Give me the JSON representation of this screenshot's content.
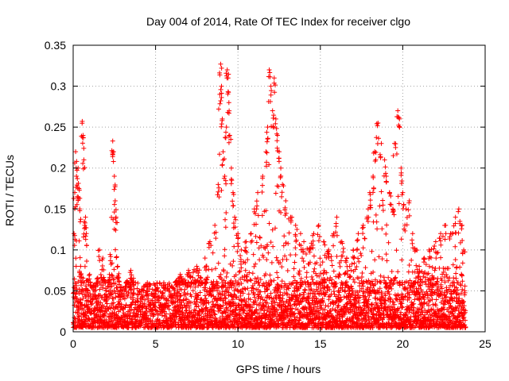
{
  "chart_data": {
    "type": "scatter",
    "title": "Day 004 of 2014, Rate Of TEC Index for receiver clgo",
    "xlabel": "GPS time / hours",
    "ylabel": "ROTI / TECUs",
    "xlim": [
      0,
      25
    ],
    "ylim": [
      0,
      0.35
    ],
    "xticks": [
      0,
      5,
      10,
      15,
      20,
      25
    ],
    "xtick_labels": [
      "0",
      "5",
      "10",
      "15",
      "20",
      "25"
    ],
    "yticks": [
      0,
      0.05,
      0.1,
      0.15,
      0.2,
      0.25,
      0.3,
      0.35
    ],
    "ytick_labels": [
      "0",
      "0.05",
      "0.1",
      "0.15",
      "0.2",
      "0.25",
      "0.3",
      "0.35"
    ],
    "grid": true,
    "marker": "+",
    "series": [
      {
        "name": "ROTI",
        "color": "#ff0000",
        "points": [
          [
            0.05,
            0.12
          ],
          [
            0.1,
            0.17
          ],
          [
            0.15,
            0.22
          ],
          [
            0.2,
            0.19
          ],
          [
            0.25,
            0.165
          ],
          [
            0.3,
            0.2
          ],
          [
            0.35,
            0.175
          ],
          [
            0.4,
            0.15
          ],
          [
            0.45,
            0.08
          ],
          [
            0.5,
            0.06
          ],
          [
            0.55,
            0.257
          ],
          [
            0.6,
            0.24
          ],
          [
            0.65,
            0.21
          ],
          [
            0.7,
            0.13
          ],
          [
            0.75,
            0.14
          ],
          [
            0.8,
            0.12
          ],
          [
            0.9,
            0.05
          ],
          [
            1.0,
            0.07
          ],
          [
            1.2,
            0.04
          ],
          [
            1.4,
            0.06
          ],
          [
            1.6,
            0.1
          ],
          [
            1.8,
            0.09
          ],
          [
            2.0,
            0.05
          ],
          [
            2.2,
            0.07
          ],
          [
            2.4,
            0.233
          ],
          [
            2.45,
            0.22
          ],
          [
            2.5,
            0.19
          ],
          [
            2.55,
            0.16
          ],
          [
            2.6,
            0.14
          ],
          [
            2.7,
            0.08
          ],
          [
            2.9,
            0.05
          ],
          [
            3.2,
            0.06
          ],
          [
            3.5,
            0.075
          ],
          [
            4.0,
            0.05
          ],
          [
            4.5,
            0.06
          ],
          [
            5.0,
            0.05
          ],
          [
            5.5,
            0.06
          ],
          [
            6.0,
            0.055
          ],
          [
            6.5,
            0.07
          ],
          [
            7.0,
            0.075
          ],
          [
            7.5,
            0.08
          ],
          [
            8.0,
            0.09
          ],
          [
            8.3,
            0.11
          ],
          [
            8.6,
            0.13
          ],
          [
            8.8,
            0.18
          ],
          [
            8.9,
            0.29
          ],
          [
            8.95,
            0.327
          ],
          [
            9.0,
            0.3
          ],
          [
            9.05,
            0.26
          ],
          [
            9.1,
            0.22
          ],
          [
            9.2,
            0.19
          ],
          [
            9.3,
            0.25
          ],
          [
            9.35,
            0.32
          ],
          [
            9.4,
            0.31
          ],
          [
            9.45,
            0.28
          ],
          [
            9.5,
            0.24
          ],
          [
            9.6,
            0.2
          ],
          [
            9.7,
            0.17
          ],
          [
            9.8,
            0.14
          ],
          [
            10.0,
            0.12
          ],
          [
            10.2,
            0.1
          ],
          [
            10.5,
            0.11
          ],
          [
            10.8,
            0.12
          ],
          [
            11.0,
            0.15
          ],
          [
            11.2,
            0.17
          ],
          [
            11.5,
            0.19
          ],
          [
            11.7,
            0.22
          ],
          [
            11.8,
            0.25
          ],
          [
            11.9,
            0.32
          ],
          [
            12.0,
            0.3
          ],
          [
            12.1,
            0.27
          ],
          [
            12.2,
            0.31
          ],
          [
            12.3,
            0.26
          ],
          [
            12.4,
            0.24
          ],
          [
            12.5,
            0.22
          ],
          [
            12.6,
            0.2
          ],
          [
            12.7,
            0.18
          ],
          [
            12.9,
            0.16
          ],
          [
            13.2,
            0.14
          ],
          [
            13.5,
            0.13
          ],
          [
            13.8,
            0.12
          ],
          [
            14.0,
            0.11
          ],
          [
            14.3,
            0.1
          ],
          [
            14.6,
            0.12
          ],
          [
            14.9,
            0.13
          ],
          [
            15.2,
            0.11
          ],
          [
            15.5,
            0.1
          ],
          [
            15.8,
            0.12
          ],
          [
            16.0,
            0.14
          ],
          [
            16.3,
            0.11
          ],
          [
            16.6,
            0.09
          ],
          [
            17.0,
            0.1
          ],
          [
            17.3,
            0.12
          ],
          [
            17.6,
            0.13
          ],
          [
            17.9,
            0.15
          ],
          [
            18.0,
            0.17
          ],
          [
            18.2,
            0.19
          ],
          [
            18.3,
            0.22
          ],
          [
            18.5,
            0.255
          ],
          [
            18.7,
            0.23
          ],
          [
            18.9,
            0.21
          ],
          [
            19.0,
            0.19
          ],
          [
            19.2,
            0.17
          ],
          [
            19.4,
            0.15
          ],
          [
            19.5,
            0.23
          ],
          [
            19.7,
            0.27
          ],
          [
            19.8,
            0.26
          ],
          [
            19.9,
            0.2
          ],
          [
            20.0,
            0.17
          ],
          [
            20.2,
            0.15
          ],
          [
            20.4,
            0.16
          ],
          [
            20.6,
            0.12
          ],
          [
            20.8,
            0.1
          ],
          [
            21.0,
            0.08
          ],
          [
            21.3,
            0.09
          ],
          [
            21.6,
            0.1
          ],
          [
            22.0,
            0.11
          ],
          [
            22.3,
            0.12
          ],
          [
            22.6,
            0.13
          ],
          [
            22.9,
            0.12
          ],
          [
            23.2,
            0.14
          ],
          [
            23.4,
            0.15
          ],
          [
            23.6,
            0.13
          ],
          [
            23.7,
            0.1
          ]
        ]
      }
    ],
    "baseline_band": {
      "x_range": [
        0,
        23.8
      ],
      "y_range": [
        0.005,
        0.06
      ],
      "note": "dense cloud of low-value ROTI samples across the day"
    }
  }
}
